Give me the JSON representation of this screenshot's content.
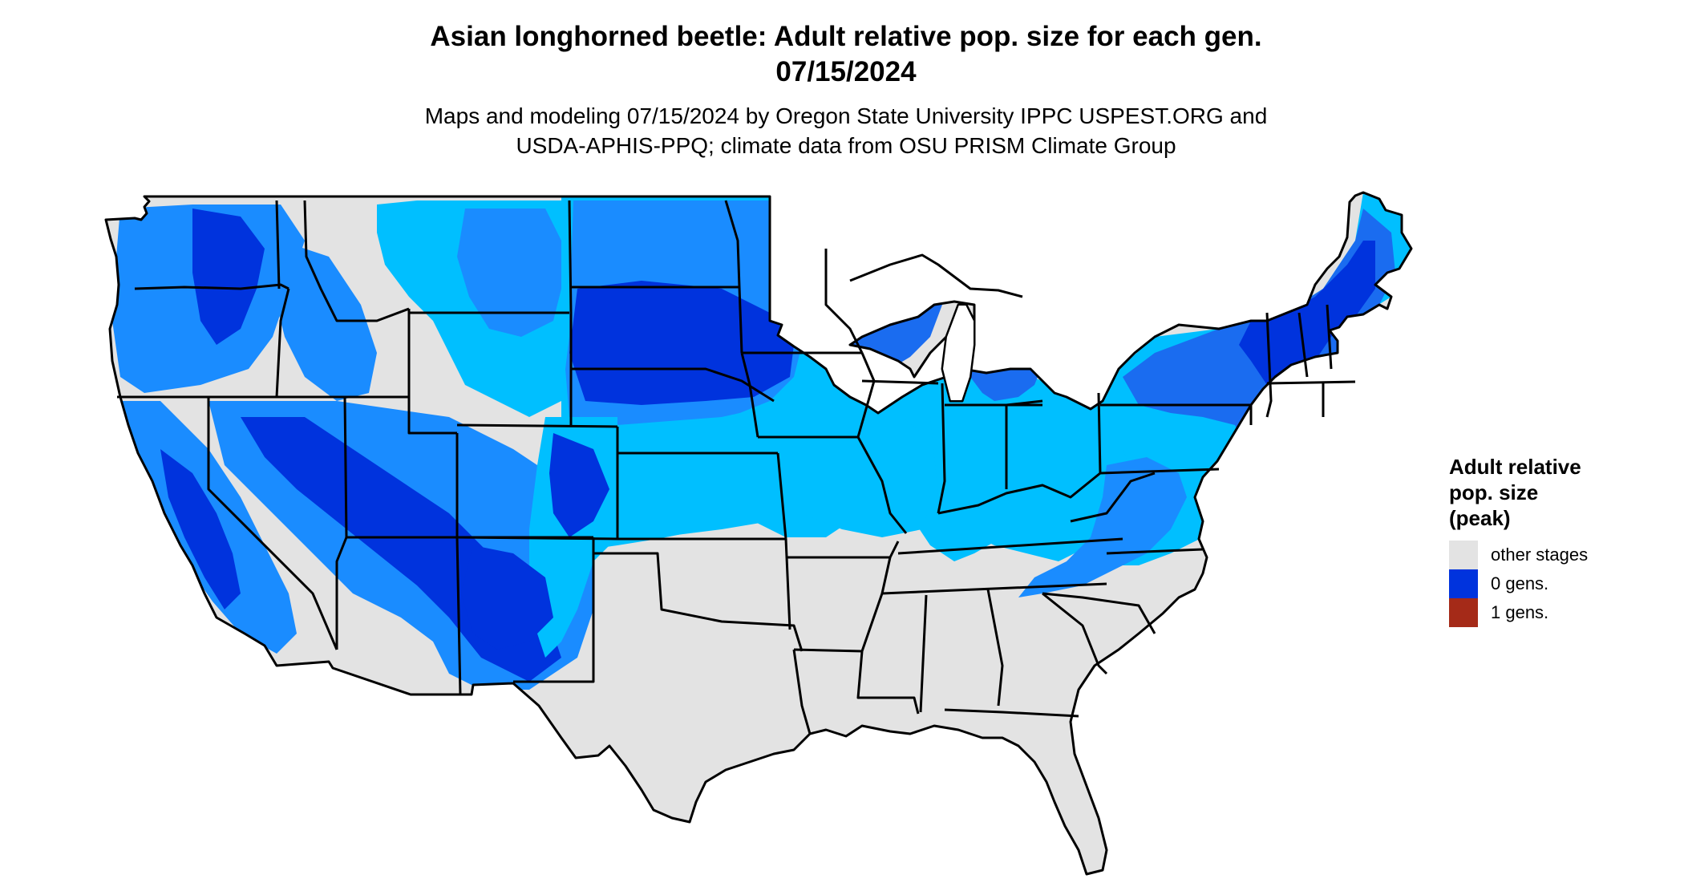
{
  "title": {
    "line1": "Asian longhorned beetle: Adult relative pop. size for each gen.",
    "line2": "07/15/2024"
  },
  "subtitle": {
    "line1": "Maps and modeling 07/15/2024 by Oregon State University IPPC USPEST.ORG and",
    "line2": "USDA-APHIS-PPQ; climate data from OSU PRISM Climate Group"
  },
  "legend": {
    "title_line1": "Adult relative",
    "title_line2": "pop. size",
    "title_line3": "(peak)",
    "items": [
      {
        "label": "other stages",
        "color": "#e3e3e3"
      },
      {
        "label": "0 gens.",
        "color": "#0033dd"
      },
      {
        "label": "1 gens.",
        "color": "#a52a18"
      }
    ]
  },
  "map": {
    "region": "contiguous United States",
    "state_border_color": "#000000",
    "other_stages_color": "#e3e3e3",
    "light_blue_color": "#00bfff",
    "medium_blue_color": "#1a8cff",
    "dark_blue_color": "#0033dd",
    "background_color": "#ffffff"
  }
}
